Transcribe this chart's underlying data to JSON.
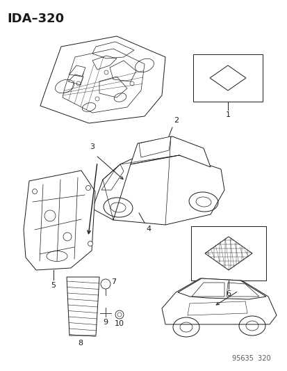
{
  "title": "IDA–320",
  "footer": "95635  320",
  "bg_color": "#ffffff",
  "line_color": "#1a1a1a",
  "label_fontsize": 8,
  "title_fontsize": 13,
  "footer_fontsize": 7
}
